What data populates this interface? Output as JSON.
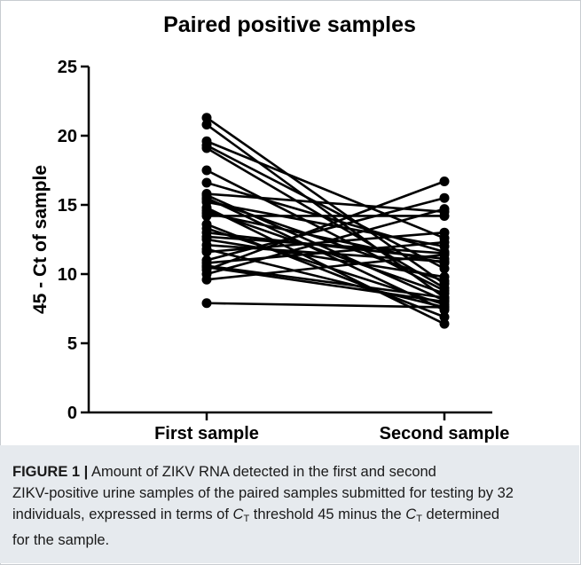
{
  "chart_data": {
    "type": "line",
    "title": "Paired positive samples",
    "ylabel": "45 - Ct of sample",
    "xlabel": "",
    "categories": [
      "First sample",
      "Second sample"
    ],
    "ylim": [
      0,
      25
    ],
    "yticks": [
      0,
      5,
      10,
      15,
      20,
      25
    ],
    "grid": false,
    "legend": "none",
    "line_color": "#000000",
    "pairs": [
      [
        21.3,
        9.3
      ],
      [
        20.8,
        8.3
      ],
      [
        19.6,
        12.6
      ],
      [
        19.3,
        10.4
      ],
      [
        19.1,
        9.0
      ],
      [
        17.5,
        8.8
      ],
      [
        16.6,
        11.6
      ],
      [
        15.8,
        14.5
      ],
      [
        15.7,
        8.1
      ],
      [
        15.5,
        7.4
      ],
      [
        15.4,
        9.5
      ],
      [
        15.2,
        12.0
      ],
      [
        14.8,
        6.4
      ],
      [
        14.6,
        8.6
      ],
      [
        14.4,
        10.8
      ],
      [
        14.2,
        14.2
      ],
      [
        13.6,
        6.9
      ],
      [
        13.3,
        7.8
      ],
      [
        13.0,
        11.1
      ],
      [
        12.7,
        11.5
      ],
      [
        12.5,
        9.8
      ],
      [
        12.1,
        10.9
      ],
      [
        11.8,
        7.6
      ],
      [
        11.6,
        13.0
      ],
      [
        11.0,
        15.5
      ],
      [
        10.8,
        12.3
      ],
      [
        10.6,
        8.3
      ],
      [
        10.5,
        8.0
      ],
      [
        10.3,
        16.7
      ],
      [
        10.0,
        14.7
      ],
      [
        9.6,
        11.4
      ],
      [
        7.9,
        7.6
      ]
    ]
  },
  "caption": {
    "label": "FIGURE 1 |",
    "line1": " Amount of ZIKV RNA detected in the first and second",
    "line2": "ZIKV-positive urine samples of the paired samples submitted for testing by 32",
    "line3a": "individuals, expressed in terms of ",
    "line3b": " threshold 45 minus the ",
    "line3c": " determined",
    "line4": "for the sample.",
    "ct_letter": "C",
    "ct_sub": "T"
  }
}
